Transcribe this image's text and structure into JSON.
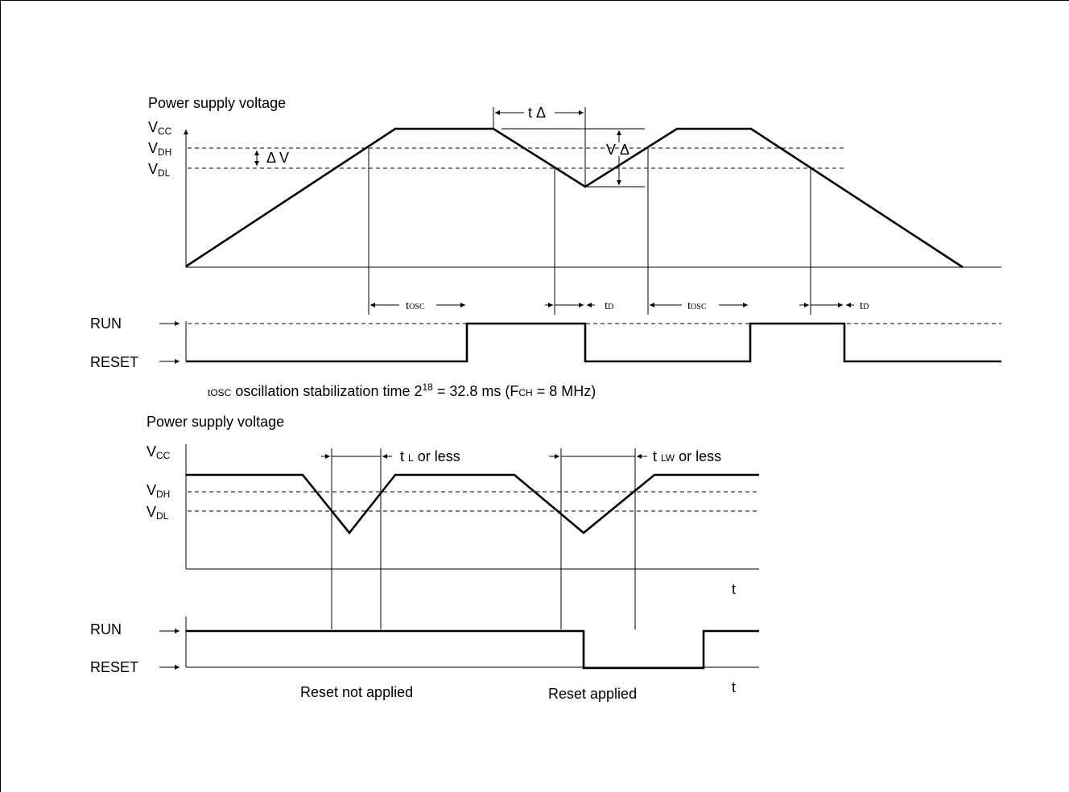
{
  "diagram1": {
    "title": "Power supply voltage",
    "vcc": {
      "main": "V",
      "sub": "CC"
    },
    "vdh": {
      "main": "V",
      "sub": "DH"
    },
    "vdl": {
      "main": "V",
      "sub": "DL"
    },
    "delta_v": "Δ V",
    "v_delta": "V Δ",
    "t_delta": "t Δ",
    "tosc": {
      "main": "t",
      "sub": "OSC"
    },
    "td": {
      "main": "t",
      "sub": "D"
    },
    "run": "RUN",
    "reset": "RESET"
  },
  "note": {
    "prefix_main": "t",
    "prefix_sub": "OSC",
    "text1": " oscillation stabilization time 2",
    "sup": "18",
    "text2": " = 32.8 ms (F",
    "sub2": "CH",
    "text3": " = 8 MHz)"
  },
  "diagram2": {
    "title": "Power supply voltage",
    "vcc": {
      "main": "V",
      "sub": "CC"
    },
    "vdh": {
      "main": "V",
      "sub": "DH"
    },
    "vdl": {
      "main": "V",
      "sub": "DL"
    },
    "tl": {
      "main": "t ",
      "sub": "L",
      "rest": " or less"
    },
    "tlw": {
      "main": "t ",
      "sub": "LW",
      "rest": " or less"
    },
    "t_axis": "t",
    "t_axis2": "t",
    "run": "RUN",
    "reset": "RESET",
    "reset_not_applied": "Reset not applied",
    "reset_applied": "Reset applied"
  }
}
